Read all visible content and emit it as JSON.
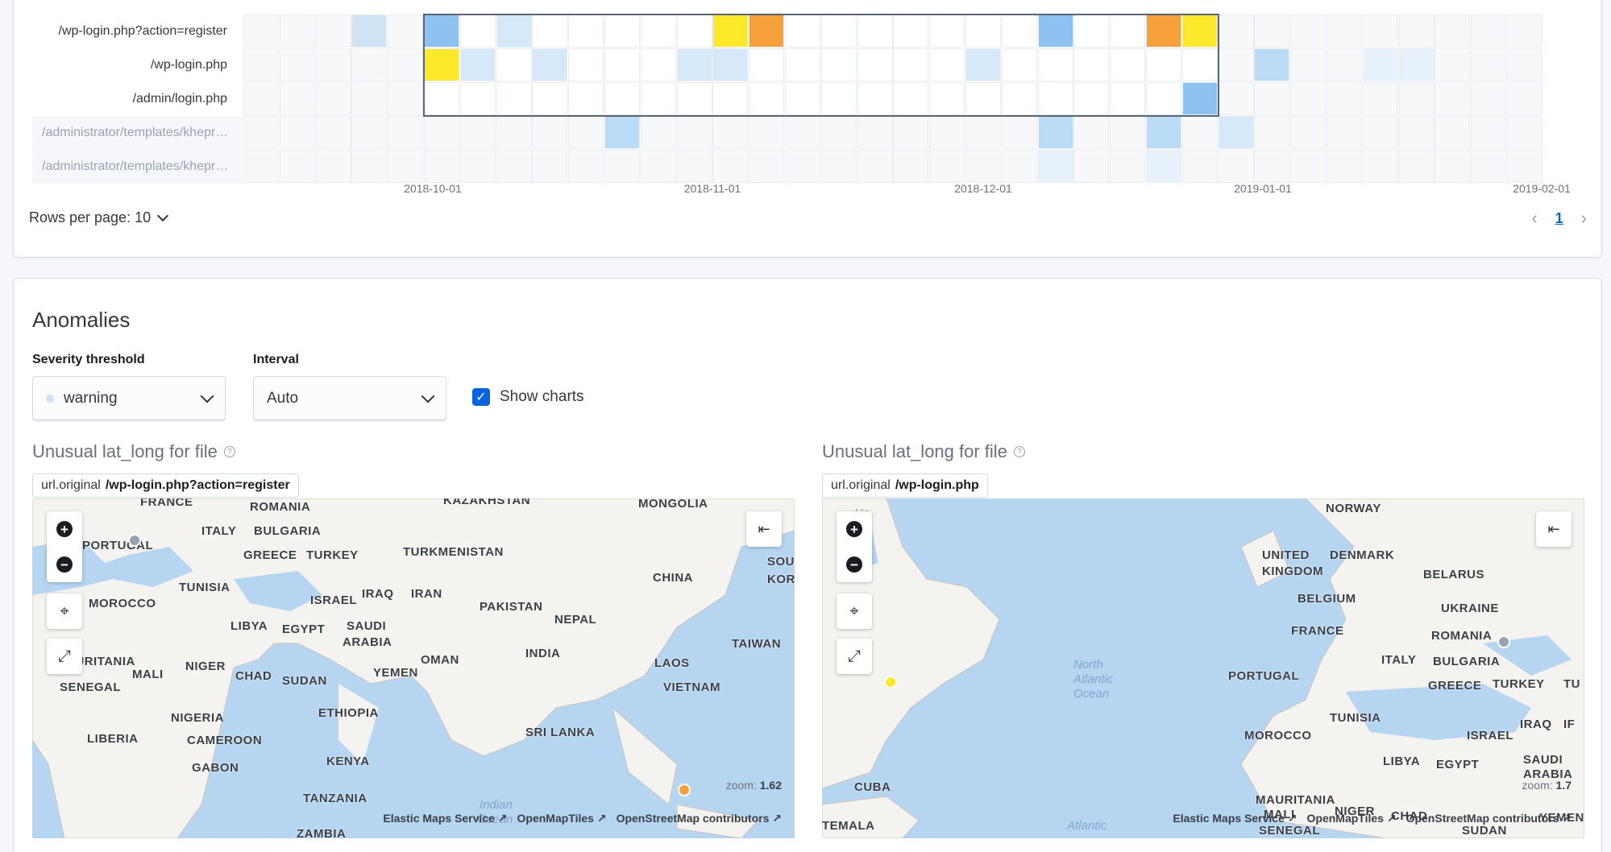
{
  "swimlane": {
    "lanes": [
      {
        "label": "/wp-login.php?action=register",
        "dim": false
      },
      {
        "label": "/wp-login.php",
        "dim": false
      },
      {
        "label": "/admin/login.php",
        "dim": false
      },
      {
        "label": "/administrator/templates/khepr…",
        "dim": true
      },
      {
        "label": "/administrator/templates/khepr…",
        "dim": true
      }
    ],
    "x_ticks": [
      "2018-10-01",
      "2018-11-01",
      "2018-12-01",
      "2019-01-01",
      "2019-02-01"
    ],
    "columns": 36,
    "selection": {
      "start_col": 5,
      "end_col": 26,
      "start_row": 0,
      "end_row": 2
    },
    "colored_cells": [
      {
        "row": 0,
        "col": 3,
        "color": "#cfe3f5"
      },
      {
        "row": 0,
        "col": 5,
        "color": "#8ec3f1"
      },
      {
        "row": 0,
        "col": 7,
        "color": "#d6e9f8"
      },
      {
        "row": 0,
        "col": 13,
        "color": "#fde92b"
      },
      {
        "row": 0,
        "col": 14,
        "color": "#f5a03a"
      },
      {
        "row": 0,
        "col": 22,
        "color": "#8ec3f1"
      },
      {
        "row": 0,
        "col": 25,
        "color": "#f5a03a"
      },
      {
        "row": 0,
        "col": 26,
        "color": "#fde92b"
      },
      {
        "row": 1,
        "col": 5,
        "color": "#fde92b"
      },
      {
        "row": 1,
        "col": 6,
        "color": "#d6e9f8"
      },
      {
        "row": 1,
        "col": 8,
        "color": "#d6e9f8"
      },
      {
        "row": 1,
        "col": 12,
        "color": "#d6e9f8"
      },
      {
        "row": 1,
        "col": 13,
        "color": "#d6e9f8"
      },
      {
        "row": 1,
        "col": 20,
        "color": "#d6e9f8"
      },
      {
        "row": 1,
        "col": 28,
        "color": "#b9dbf6"
      },
      {
        "row": 1,
        "col": 31,
        "color": "#e6f1fa"
      },
      {
        "row": 1,
        "col": 32,
        "color": "#e6f1fa"
      },
      {
        "row": 2,
        "col": 26,
        "color": "#8ec3f1"
      },
      {
        "row": 3,
        "col": 10,
        "color": "#b9dbf6"
      },
      {
        "row": 3,
        "col": 22,
        "color": "#b9dbf6"
      },
      {
        "row": 3,
        "col": 25,
        "color": "#b9dbf6"
      },
      {
        "row": 3,
        "col": 27,
        "color": "#d6e9f8"
      },
      {
        "row": 4,
        "col": 22,
        "color": "#e6f1fa"
      },
      {
        "row": 4,
        "col": 25,
        "color": "#e6f1fa"
      }
    ],
    "rows_per_page_label": "Rows per page: 10",
    "current_page": "1"
  },
  "anomalies": {
    "title": "Anomalies",
    "severity_label": "Severity threshold",
    "severity_value": "warning",
    "interval_label": "Interval",
    "interval_value": "Auto",
    "show_charts_label": "Show charts",
    "show_charts_checked": true
  },
  "maps": [
    {
      "title": "Unusual lat_long for file",
      "badge_key": "url.original",
      "badge_value": "/wp-login.php?action=register",
      "zoom_label": "zoom:",
      "zoom_value": "1.62",
      "attribution": [
        "Elastic Maps Service",
        "OpenMapTiles",
        "OpenStreetMap contributors"
      ],
      "labels": [
        {
          "text": "FRANCE"
        },
        {
          "text": "ROMANIA"
        },
        {
          "text": "KAZAKHSTAN"
        },
        {
          "text": "MONGOLIA"
        },
        {
          "text": "PORTUGAL"
        },
        {
          "text": "ITALY"
        },
        {
          "text": "BULGARIA"
        },
        {
          "text": "GREECE"
        },
        {
          "text": "TURKEY"
        },
        {
          "text": "TURKMENISTAN"
        },
        {
          "text": "SOU"
        },
        {
          "text": "KOR"
        },
        {
          "text": "TUNISIA"
        },
        {
          "text": "CHINA"
        },
        {
          "text": "MOROCCO"
        },
        {
          "text": "ISRAEL"
        },
        {
          "text": "IRAQ"
        },
        {
          "text": "IRAN"
        },
        {
          "text": "PAKISTAN"
        },
        {
          "text": "LIBYA"
        },
        {
          "text": "EGYPT"
        },
        {
          "text": "SAUDI"
        },
        {
          "text": "ARABIA"
        },
        {
          "text": "NEPAL"
        },
        {
          "text": "TAIWAN"
        },
        {
          "text": "AURITANIA"
        },
        {
          "text": "OMAN"
        },
        {
          "text": "INDIA"
        },
        {
          "text": "MALI"
        },
        {
          "text": "NIGER"
        },
        {
          "text": "CHAD"
        },
        {
          "text": "SUDAN"
        },
        {
          "text": "YEMEN"
        },
        {
          "text": "LAOS"
        },
        {
          "text": "SENEGAL"
        },
        {
          "text": "VIETNAM"
        },
        {
          "text": "ETHIOPIA"
        },
        {
          "text": "NIGERIA"
        },
        {
          "text": "LIBERIA"
        },
        {
          "text": "CAMEROON"
        },
        {
          "text": "SRI LANKA"
        },
        {
          "text": "GABON"
        },
        {
          "text": "KENYA"
        },
        {
          "text": "TANZANIA"
        },
        {
          "text": "ZAMBIA"
        }
      ],
      "oceans": [
        "Indian",
        "Ocean"
      ],
      "points": [
        {
          "color": "#f5a03a"
        },
        {
          "color": "#98a2b3"
        }
      ]
    },
    {
      "title": "Unusual lat_long for file",
      "badge_key": "url.original",
      "badge_value": "/wp-login.php",
      "zoom_label": "zoom:",
      "zoom_value": "1.7",
      "attribution": [
        "Elastic Maps Service",
        "OpenMapTiles",
        "OpenStreetMap contributors"
      ],
      "labels": [
        {
          "text": "NORWAY"
        },
        {
          "text": "UNITED"
        },
        {
          "text": "KINGDOM"
        },
        {
          "text": "DENMARK"
        },
        {
          "text": "BELARUS"
        },
        {
          "text": "BELGIUM"
        },
        {
          "text": "UKRAINE"
        },
        {
          "text": "FRANCE"
        },
        {
          "text": "ROMANIA"
        },
        {
          "text": "ITALY"
        },
        {
          "text": "BULGARIA"
        },
        {
          "text": "PORTUGAL"
        },
        {
          "text": "GREECE"
        },
        {
          "text": "TURKEY"
        },
        {
          "text": "TU"
        },
        {
          "text": "TUNISIA"
        },
        {
          "text": "MOROCCO"
        },
        {
          "text": "ISRAEL"
        },
        {
          "text": "IRAQ"
        },
        {
          "text": "IF"
        },
        {
          "text": "LIBYA"
        },
        {
          "text": "EGYPT"
        },
        {
          "text": "SAUDI"
        },
        {
          "text": "ARABIA"
        },
        {
          "text": "CUBA"
        },
        {
          "text": "MAURITANIA"
        },
        {
          "text": "MALI"
        },
        {
          "text": "NIGER"
        },
        {
          "text": "CHAD"
        },
        {
          "text": "YEMEN"
        },
        {
          "text": "SENEGAL"
        },
        {
          "text": "SUDAN"
        },
        {
          "text": "TEMALA"
        }
      ],
      "oceans": [
        "North",
        "Atlantic",
        "Ocean",
        "Atlantic",
        "Ho"
      ],
      "points": [
        {
          "color": "#fde92b"
        },
        {
          "color": "#98a2b3"
        }
      ]
    }
  ],
  "colors": {
    "accent": "#0b64dd",
    "link": "#006bb8",
    "water": "#b6d5f0",
    "land": "#f5f3ef"
  },
  "icons": {
    "zoom_in": "plus-circle-icon",
    "zoom_out": "minus-circle-icon",
    "locate": "crosshair-icon",
    "expand": "expand-icon",
    "legend": "legend-collapse-icon",
    "external": "external-link-icon",
    "help": "question-icon"
  }
}
